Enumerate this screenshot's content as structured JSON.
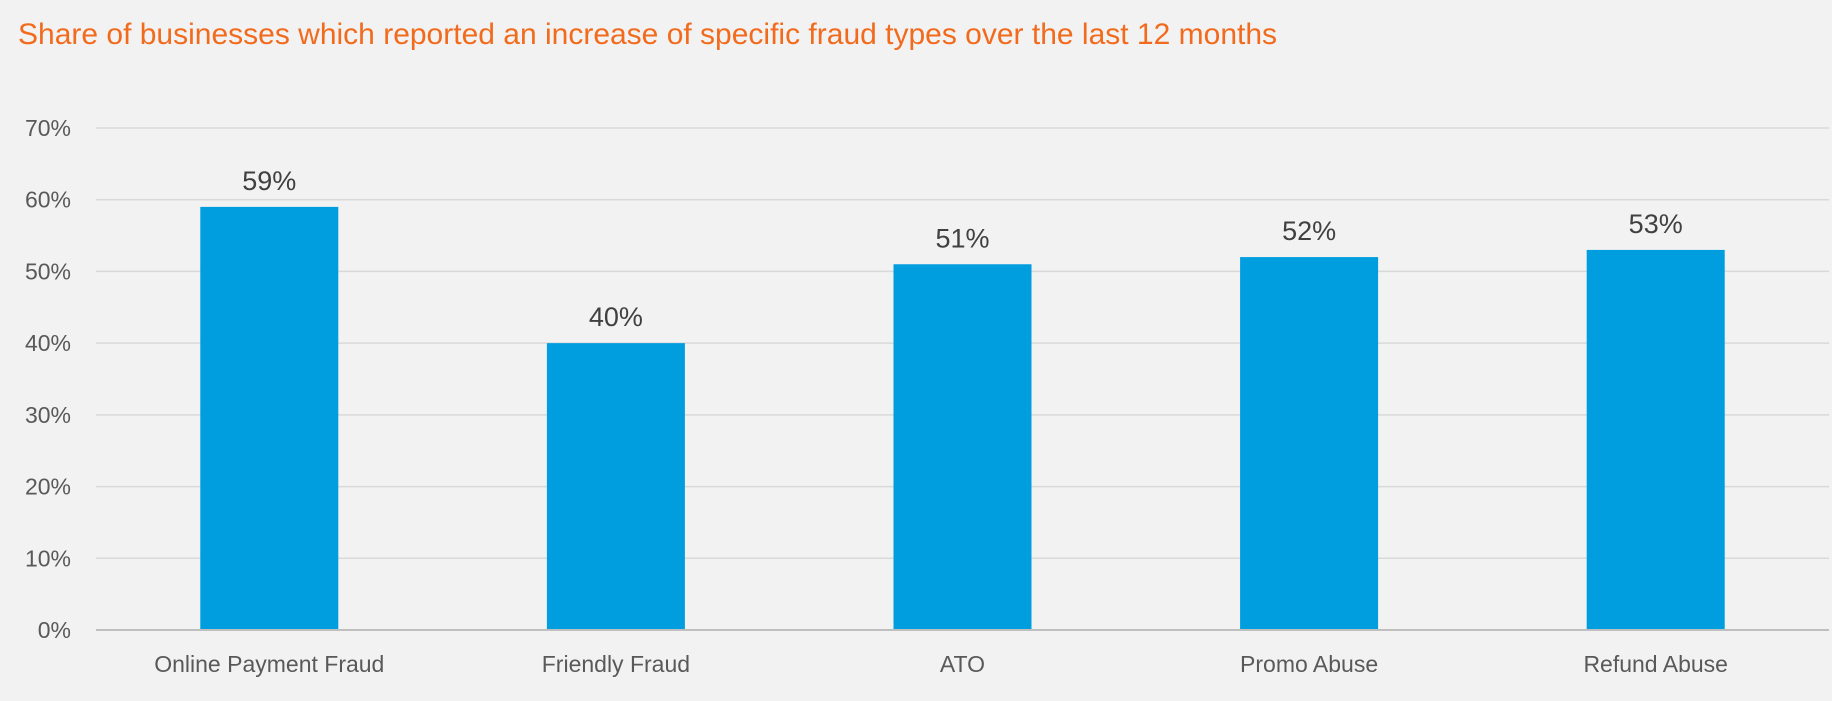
{
  "chart_data": {
    "type": "bar",
    "title": "Share of businesses which reported an increase of specific fraud types over the last 12 months",
    "categories": [
      "Online Payment Fraud",
      "Friendly Fraud",
      "ATO",
      "Promo Abuse",
      "Refund Abuse"
    ],
    "values": [
      59,
      40,
      51,
      52,
      53
    ],
    "data_labels": [
      "59%",
      "40%",
      "51%",
      "52%",
      "53%"
    ],
    "y_ticks": [
      "0%",
      "10%",
      "20%",
      "30%",
      "40%",
      "50%",
      "60%",
      "70%"
    ],
    "ylim": [
      0,
      70
    ],
    "xlabel": "",
    "ylabel": "",
    "grid": true,
    "legend": "none"
  },
  "colors": {
    "title": "#f26b1d",
    "bar": "#009ddf",
    "grid": "#d9d9d9",
    "axis": "#bfbfbf",
    "background": "#f2f2f2"
  }
}
